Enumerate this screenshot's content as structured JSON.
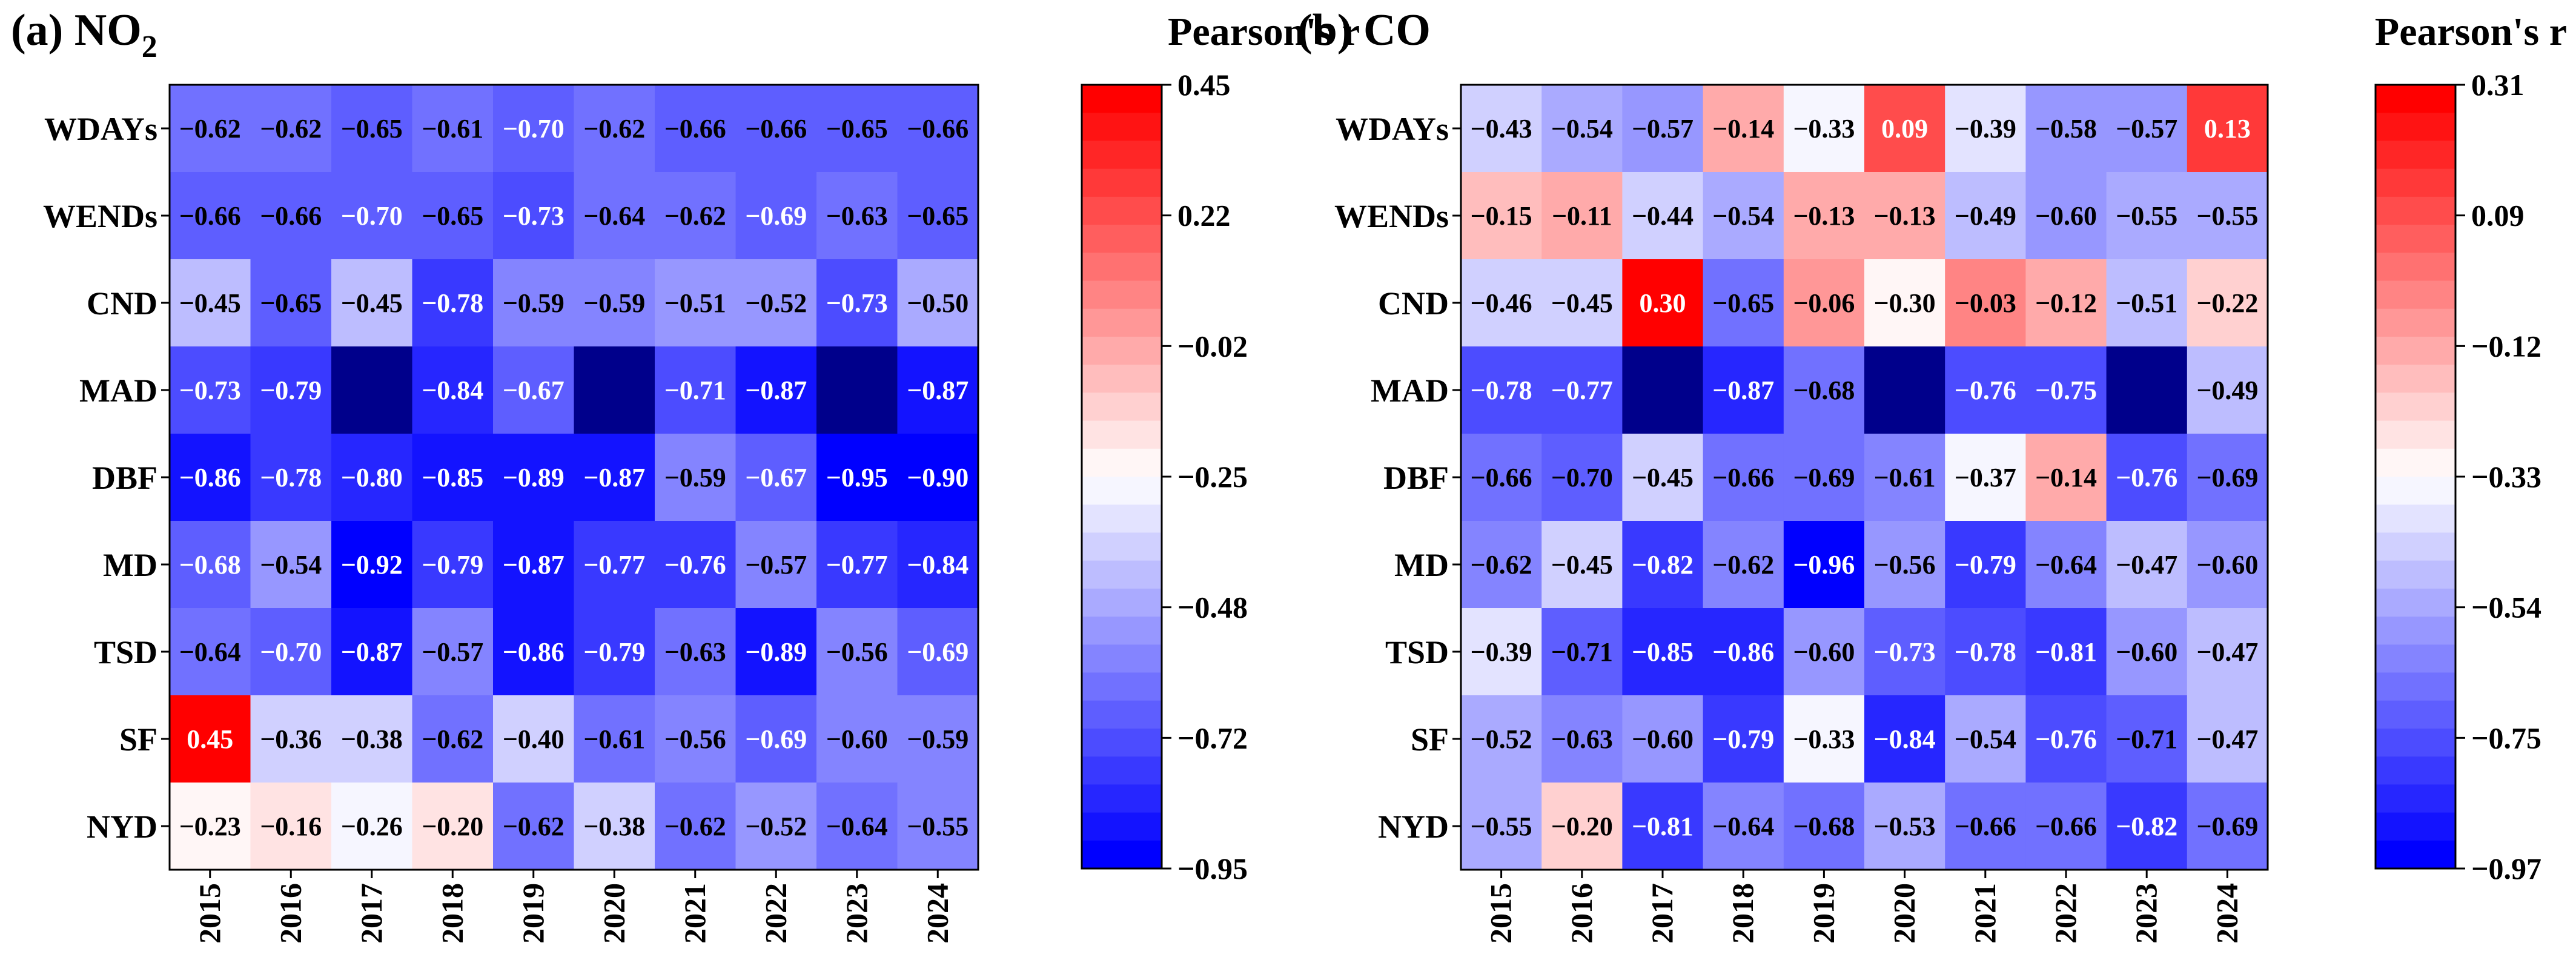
{
  "colors": {
    "scale": [
      "#0000ff",
      "#ffffff",
      "#ff0000"
    ],
    "frame": "#000000",
    "text": "#000000",
    "label_light": "#ffffff",
    "label_dark": "#000000"
  },
  "chart_data": [
    {
      "type": "heatmap",
      "panel_label": "(a) NO",
      "panel_subscript": "2",
      "title": "(a) NO2",
      "colorbar_title": "Pearson's r",
      "x": [
        "2015",
        "2016",
        "2017",
        "2018",
        "2019",
        "2020",
        "2021",
        "2022",
        "2023",
        "2024"
      ],
      "y": [
        "WDAYs",
        "WENDs",
        "CND",
        "MAD",
        "DBF",
        "MD",
        "TSD",
        "SF",
        "NYD"
      ],
      "values": [
        [
          -0.62,
          -0.62,
          -0.65,
          -0.61,
          -0.7,
          -0.62,
          -0.66,
          -0.66,
          -0.65,
          -0.66
        ],
        [
          -0.66,
          -0.66,
          -0.7,
          -0.65,
          -0.73,
          -0.64,
          -0.62,
          -0.69,
          -0.63,
          -0.65
        ],
        [
          -0.45,
          -0.65,
          -0.45,
          -0.78,
          -0.59,
          -0.59,
          -0.51,
          -0.52,
          -0.73,
          -0.5
        ],
        [
          -0.73,
          -0.79,
          null,
          -0.84,
          -0.67,
          null,
          -0.71,
          -0.87,
          null,
          -0.87
        ],
        [
          -0.86,
          -0.78,
          -0.8,
          -0.85,
          -0.89,
          -0.87,
          -0.59,
          -0.67,
          -0.95,
          -0.9
        ],
        [
          -0.68,
          -0.54,
          -0.92,
          -0.79,
          -0.87,
          -0.77,
          -0.76,
          -0.57,
          -0.77,
          -0.84
        ],
        [
          -0.64,
          -0.7,
          -0.87,
          -0.57,
          -0.86,
          -0.79,
          -0.63,
          -0.89,
          -0.56,
          -0.69
        ],
        [
          0.45,
          -0.36,
          -0.38,
          -0.62,
          -0.4,
          -0.61,
          -0.56,
          -0.69,
          -0.6,
          -0.59
        ],
        [
          -0.23,
          -0.16,
          -0.26,
          -0.2,
          -0.62,
          -0.38,
          -0.62,
          -0.52,
          -0.64,
          -0.55
        ]
      ],
      "colorbar_range": [
        -0.95,
        0.45
      ],
      "colorbar_ticks": [
        "0.45",
        "0.22",
        "−0.02",
        "−0.25",
        "−0.48",
        "−0.72",
        "−0.95"
      ]
    },
    {
      "type": "heatmap",
      "panel_label": "(b) CO",
      "panel_subscript": "",
      "title": "(b) CO",
      "colorbar_title": "Pearson's r",
      "x": [
        "2015",
        "2016",
        "2017",
        "2018",
        "2019",
        "2020",
        "2021",
        "2022",
        "2023",
        "2024"
      ],
      "y": [
        "WDAYs",
        "WENDs",
        "CND",
        "MAD",
        "DBF",
        "MD",
        "TSD",
        "SF",
        "NYD"
      ],
      "values": [
        [
          -0.43,
          -0.54,
          -0.57,
          -0.14,
          -0.33,
          0.09,
          -0.39,
          -0.58,
          -0.57,
          0.13
        ],
        [
          -0.15,
          -0.11,
          -0.44,
          -0.54,
          -0.13,
          -0.13,
          -0.49,
          -0.6,
          -0.55,
          -0.55
        ],
        [
          -0.46,
          -0.45,
          0.3,
          -0.65,
          -0.06,
          -0.3,
          -0.03,
          -0.12,
          -0.51,
          -0.22
        ],
        [
          -0.78,
          -0.77,
          null,
          -0.87,
          -0.68,
          null,
          -0.76,
          -0.75,
          null,
          -0.49
        ],
        [
          -0.66,
          -0.7,
          -0.45,
          -0.66,
          -0.69,
          -0.61,
          -0.37,
          -0.14,
          -0.76,
          -0.69
        ],
        [
          -0.62,
          -0.45,
          -0.82,
          -0.62,
          -0.96,
          -0.56,
          -0.79,
          -0.64,
          -0.47,
          -0.6
        ],
        [
          -0.39,
          -0.71,
          -0.85,
          -0.86,
          -0.6,
          -0.73,
          -0.78,
          -0.81,
          -0.6,
          -0.47
        ],
        [
          -0.52,
          -0.63,
          -0.6,
          -0.79,
          -0.33,
          -0.84,
          -0.54,
          -0.76,
          -0.71,
          -0.47
        ],
        [
          -0.55,
          -0.2,
          -0.81,
          -0.64,
          -0.68,
          -0.53,
          -0.66,
          -0.66,
          -0.82,
          -0.69
        ]
      ],
      "colorbar_range": [
        -0.97,
        0.31
      ],
      "colorbar_ticks": [
        "0.31",
        "0.09",
        "−0.12",
        "−0.33",
        "−0.54",
        "−0.75",
        "−0.97"
      ]
    }
  ]
}
